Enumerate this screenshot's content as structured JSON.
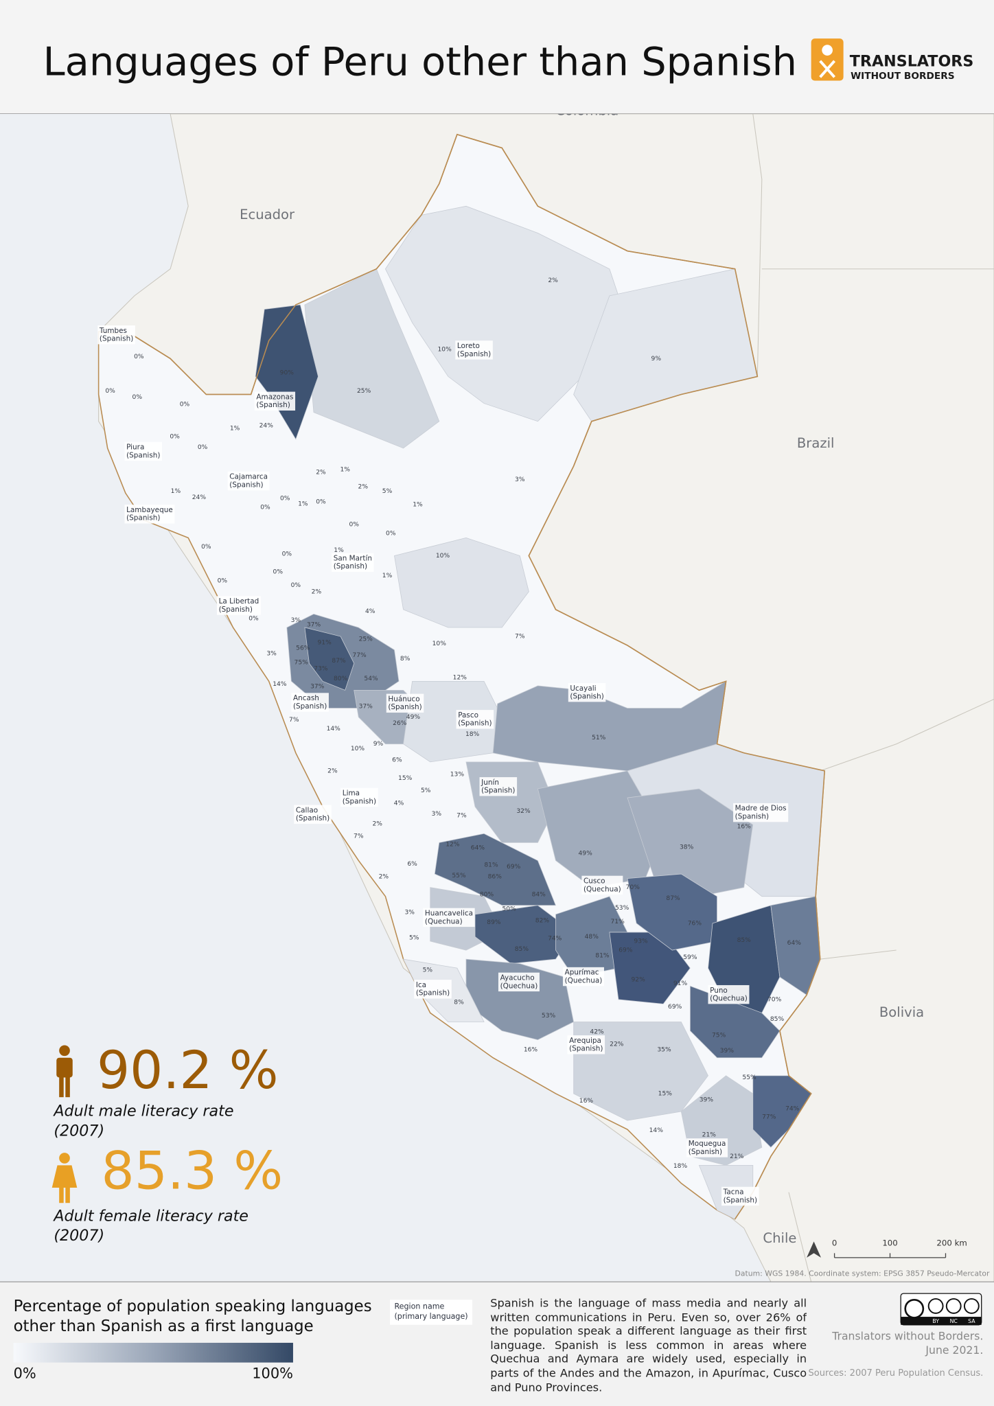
{
  "header": {
    "title": "Languages of Peru other than Spanish",
    "logo": [
      "TRANSLATORS",
      "WITHOUT BORDERS"
    ]
  },
  "map": {
    "countries": [
      "Colombia",
      "Ecuador",
      "Brazil",
      "Bolivia",
      "Chile"
    ],
    "regions": [
      {
        "name": "Tumbes",
        "language": "(Spanish)"
      },
      {
        "name": "Amazonas",
        "language": "(Spanish)"
      },
      {
        "name": "Piura",
        "language": "(Spanish)"
      },
      {
        "name": "Cajamarca",
        "language": "(Spanish)"
      },
      {
        "name": "Lambayeque",
        "language": "(Spanish)"
      },
      {
        "name": "Loreto",
        "language": "(Spanish)"
      },
      {
        "name": "San Martín",
        "language": "(Spanish)"
      },
      {
        "name": "La Libertad",
        "language": "(Spanish)"
      },
      {
        "name": "Ancash",
        "language": "(Spanish)"
      },
      {
        "name": "Huánuco",
        "language": "(Spanish)"
      },
      {
        "name": "Pasco",
        "language": "(Spanish)"
      },
      {
        "name": "Ucayali",
        "language": "(Spanish)"
      },
      {
        "name": "Junín",
        "language": "(Spanish)"
      },
      {
        "name": "Lima",
        "language": "(Spanish)"
      },
      {
        "name": "Callao",
        "language": "(Spanish)"
      },
      {
        "name": "Madre de Dios",
        "language": "(Spanish)"
      },
      {
        "name": "Cusco",
        "language": "(Quechua)"
      },
      {
        "name": "Huancavelica",
        "language": "(Quechua)"
      },
      {
        "name": "Ayacucho",
        "language": "(Quechua)"
      },
      {
        "name": "Apurímac",
        "language": "(Quechua)"
      },
      {
        "name": "Arequipa",
        "language": "(Spanish)"
      },
      {
        "name": "Ica",
        "language": "(Spanish)"
      },
      {
        "name": "Puno",
        "language": "(Quechua)"
      },
      {
        "name": "Moquegua",
        "language": "(Spanish)"
      },
      {
        "name": "Tacna",
        "language": "(Spanish)"
      }
    ],
    "percent_labels": [
      "0%",
      "0%",
      "0%",
      "0%",
      "0%",
      "0%",
      "1%",
      "24%",
      "24%",
      "90%",
      "25%",
      "10%",
      "2%",
      "9%",
      "3%",
      "1%",
      "2%",
      "1%",
      "0%",
      "0%",
      "1%",
      "2%",
      "5%",
      "1%",
      "0%",
      "0%",
      "0%",
      "0%",
      "0%",
      "1%",
      "10%",
      "1%",
      "0%",
      "0%",
      "0%",
      "2%",
      "4%",
      "0%",
      "3%",
      "37%",
      "91%",
      "25%",
      "56%",
      "87%",
      "77%",
      "3%",
      "75%",
      "73%",
      "8%",
      "10%",
      "7%",
      "80%",
      "54%",
      "14%",
      "37%",
      "12%",
      "37%",
      "49%",
      "26%",
      "7%",
      "14%",
      "18%",
      "51%",
      "10%",
      "9%",
      "6%",
      "2%",
      "15%",
      "13%",
      "5%",
      "32%",
      "4%",
      "3%",
      "7%",
      "2%",
      "7%",
      "16%",
      "38%",
      "12%",
      "64%",
      "49%",
      "6%",
      "81%",
      "69%",
      "55%",
      "86%",
      "2%",
      "80%",
      "84%",
      "70%",
      "87%",
      "50%",
      "53%",
      "3%",
      "82%",
      "71%",
      "76%",
      "89%",
      "74%",
      "48%",
      "93%",
      "85%",
      "64%",
      "5%",
      "85%",
      "81%",
      "69%",
      "59%",
      "5%",
      "92%",
      "91%",
      "82%",
      "70%",
      "8%",
      "69%",
      "53%",
      "42%",
      "85%",
      "75%",
      "22%",
      "16%",
      "35%",
      "39%",
      "55%",
      "15%",
      "16%",
      "39%",
      "74%",
      "77%",
      "14%",
      "21%",
      "21%",
      "18%"
    ],
    "scale_bar": [
      "0",
      "100",
      "200 km"
    ],
    "datum": "Datum: WGS 1984. Coordinate system: EPSG 3857 Pseudo-Mercator"
  },
  "stats": [
    {
      "value": "90.2 %",
      "label": "Adult male literacy rate",
      "year": "(2007)"
    },
    {
      "value": "85.3 %",
      "label": "Adult female literacy rate",
      "year": "(2007)"
    }
  ],
  "legend": {
    "title": [
      "Percentage of population speaking languages",
      "other than Spanish as a first language"
    ],
    "min": "0%",
    "max": "100%",
    "key": [
      "Region name",
      "(primary language)"
    ]
  },
  "description": "Spanish is the language of mass media and nearly all written communications in Peru. Even so, over 26% of the population speak a different language as their first language. Spanish is less common in areas where Quechua and Aymara are widely used, especially in parts of the Andes and the Amazon, in Apurímac, Cusco and Puno Provinces.",
  "credits": {
    "license": [
      "BY",
      "NC",
      "SA"
    ],
    "author": "Translators without Borders.",
    "date": "June 2021.",
    "sources": "Sources: 2007 Peru Population Census."
  }
}
